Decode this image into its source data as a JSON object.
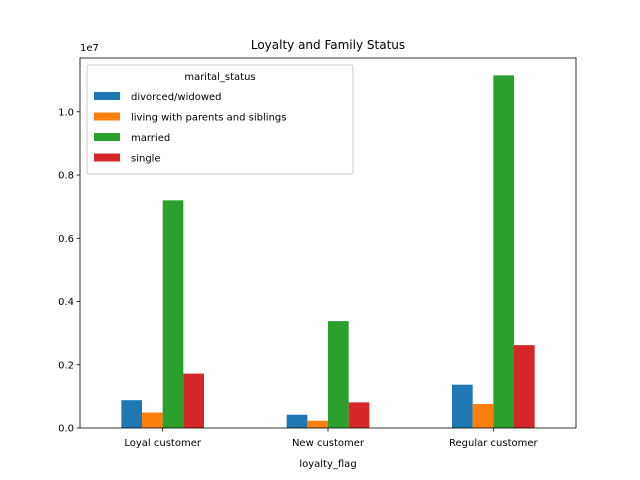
{
  "chart_data": {
    "type": "bar",
    "title": "Loyalty and Family Status",
    "xlabel": "loyalty_flag",
    "ylabel": "",
    "offset_label": "1e7",
    "categories": [
      "Loyal customer",
      "New customer",
      "Regular customer"
    ],
    "ylim": [
      0,
      11700000
    ],
    "yticks": [
      0,
      2000000,
      4000000,
      6000000,
      8000000,
      10000000
    ],
    "ytick_labels": [
      "0.0",
      "0.2",
      "0.4",
      "0.6",
      "0.8",
      "1.0"
    ],
    "legend": {
      "title": "marital_status",
      "placement": "upper-left"
    },
    "grid": false,
    "series": [
      {
        "name": "divorced/widowed",
        "color": "#1f77b4",
        "values": [
          880000,
          420000,
          1370000
        ]
      },
      {
        "name": "living with parents and siblings",
        "color": "#ff7f0e",
        "values": [
          490000,
          230000,
          760000
        ]
      },
      {
        "name": "married",
        "color": "#2ca02c",
        "values": [
          7200000,
          3380000,
          11150000
        ]
      },
      {
        "name": "single",
        "color": "#d62728",
        "values": [
          1720000,
          810000,
          2620000
        ]
      }
    ]
  }
}
